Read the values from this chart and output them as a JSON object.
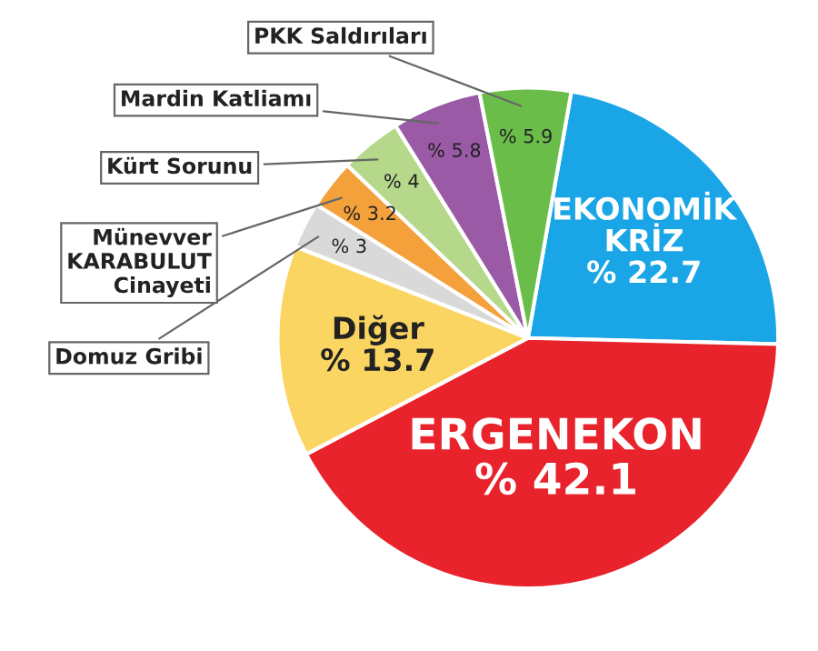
{
  "chart_data": {
    "type": "pie",
    "categories": [
      "EKONOMİK KRİZ",
      "ERGENEKON",
      "Diğer",
      "Domuz Gribi",
      "Münevver\nKARABULUT\nCinayeti",
      "Kürt Sorunu",
      "Mardin Katliamı",
      "PKK Saldırıları"
    ],
    "values": [
      22.7,
      42.1,
      13.7,
      3,
      3.2,
      4,
      5.8,
      5.9
    ],
    "value_labels": [
      "% 22.7",
      "% 42.1",
      "% 13.7",
      "% 3",
      "% 3.2",
      "% 4",
      "% 5.8",
      "% 5.9"
    ],
    "colors": [
      "#1aa6e6",
      "#e8232b",
      "#fbd562",
      "#d9d9d9",
      "#f4a13b",
      "#b5d88a",
      "#9b5aa6",
      "#6bbd4a"
    ]
  }
}
